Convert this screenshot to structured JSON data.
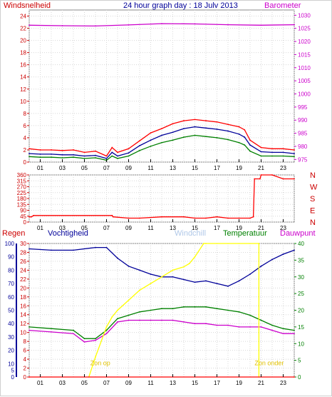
{
  "header": {
    "left_label": "Windsnelheid",
    "title": "24 hour graph day : 18 Julv 2013",
    "right_label": "Barometer"
  },
  "colors": {
    "red": "#ff0000",
    "blue": "#000099",
    "green": "#008000",
    "magenta": "#cc00cc",
    "yellow": "#ffff00",
    "windchill": "#b0c8e8",
    "dark_red": "#990000"
  },
  "chart_data": [
    {
      "type": "line",
      "title": "24 hour graph day : 18 Julv 2013",
      "x_ticks": [
        "01",
        "03",
        "05",
        "07",
        "09",
        "11",
        "13",
        "15",
        "17",
        "19",
        "21",
        "23"
      ],
      "xlim": [
        0,
        24
      ],
      "left_axis": {
        "label": "Windsnelheid",
        "ticks": [
          0,
          2,
          4,
          6,
          8,
          10,
          12,
          14,
          16,
          18,
          20,
          22,
          24
        ],
        "ylim": [
          0,
          25
        ]
      },
      "right_axis": {
        "label": "Barometer",
        "ticks": [
          975,
          980,
          985,
          990,
          995,
          1000,
          1005,
          1010,
          1015,
          1020,
          1025,
          1030
        ],
        "ylim": [
          974,
          1032
        ]
      },
      "series": [
        {
          "name": "Barometer",
          "axis": "right",
          "color": "#cc00cc",
          "x": [
            0,
            3,
            6,
            9,
            12,
            15,
            18,
            21,
            24
          ],
          "y": [
            1026.2,
            1026.0,
            1025.9,
            1026.3,
            1026.8,
            1026.7,
            1026.4,
            1026.2,
            1026.4
          ]
        },
        {
          "color": "#ff0000",
          "x": [
            0,
            1,
            2,
            3,
            4,
            5,
            6,
            7,
            7.5,
            8,
            9,
            10,
            11,
            12,
            13,
            14,
            15,
            16,
            17,
            18,
            19,
            19.5,
            20,
            21,
            22,
            23,
            24
          ],
          "y": [
            2.2,
            2.0,
            2.0,
            1.9,
            2.0,
            1.6,
            1.8,
            1.0,
            2.4,
            1.6,
            2.2,
            3.5,
            4.8,
            5.5,
            6.3,
            6.8,
            7.0,
            6.8,
            6.6,
            6.2,
            5.8,
            5.3,
            3.6,
            2.4,
            2.2,
            2.2,
            2.0
          ]
        },
        {
          "color": "#000099",
          "x": [
            0,
            1,
            2,
            3,
            4,
            5,
            6,
            7,
            7.5,
            8,
            9,
            10,
            11,
            12,
            13,
            14,
            15,
            16,
            17,
            18,
            19,
            19.5,
            20,
            21,
            22,
            23,
            24
          ],
          "y": [
            1.4,
            1.3,
            1.3,
            1.2,
            1.2,
            1.0,
            1.1,
            0.6,
            1.6,
            1.0,
            1.5,
            2.7,
            3.6,
            4.4,
            4.9,
            5.5,
            5.8,
            5.6,
            5.4,
            5.1,
            4.6,
            4.1,
            2.8,
            1.7,
            1.6,
            1.6,
            1.4
          ]
        },
        {
          "color": "#008000",
          "x": [
            0,
            1,
            2,
            3,
            4,
            5,
            6,
            7,
            7.5,
            8,
            9,
            10,
            11,
            12,
            13,
            14,
            15,
            16,
            17,
            18,
            19,
            19.5,
            20,
            21,
            22,
            23,
            24
          ],
          "y": [
            0.9,
            0.8,
            0.8,
            0.7,
            0.8,
            0.6,
            0.7,
            0.3,
            1.0,
            0.6,
            1.0,
            1.9,
            2.6,
            3.2,
            3.6,
            4.1,
            4.4,
            4.2,
            4.0,
            3.7,
            3.2,
            2.8,
            1.8,
            1.0,
            1.0,
            1.0,
            0.9
          ]
        }
      ]
    },
    {
      "type": "line",
      "x_ticks": [
        "01",
        "03",
        "05",
        "07",
        "09",
        "11",
        "13",
        "15",
        "17",
        "19",
        "21",
        "23"
      ],
      "xlim": [
        0,
        24
      ],
      "left_axis": {
        "ticks": [
          0,
          45,
          90,
          135,
          180,
          225,
          270,
          315,
          360
        ],
        "ylim": [
          0,
          360
        ]
      },
      "right_axis": {
        "ticks": [
          "N",
          "W",
          "S",
          "E",
          "N"
        ]
      },
      "series": [
        {
          "color": "#ff0000",
          "x": [
            0,
            0.2,
            0.4,
            7.5,
            7.6,
            9,
            10,
            12,
            14,
            15,
            16,
            17,
            18,
            19,
            20,
            20.3,
            20.4,
            20.9,
            21,
            22,
            23,
            24
          ],
          "y": [
            40,
            40,
            50,
            50,
            40,
            30,
            30,
            40,
            40,
            30,
            30,
            40,
            30,
            30,
            30,
            40,
            330,
            330,
            360,
            360,
            330,
            330
          ]
        }
      ]
    },
    {
      "type": "line",
      "x_ticks": [
        "01",
        "03",
        "05",
        "07",
        "09",
        "11",
        "13",
        "15",
        "17",
        "19",
        "21",
        "23"
      ],
      "xlim": [
        0,
        24
      ],
      "header_labels": [
        "Regen",
        "Vochtigheid",
        "Windchill",
        "Temperatuur",
        "Dauwpunt"
      ],
      "axis_regen": {
        "ticks": [
          0,
          2,
          4,
          6,
          8,
          10,
          12,
          14,
          16,
          18,
          20,
          22,
          24,
          26,
          28,
          30
        ],
        "ylim": [
          0,
          30
        ]
      },
      "axis_vochtigheid": {
        "ticks": [
          0,
          5,
          10,
          20,
          30,
          40,
          50,
          60,
          70,
          80,
          90,
          100
        ],
        "ylim": [
          0,
          100
        ]
      },
      "axis_temp": {
        "ticks": [
          0,
          5,
          10,
          15,
          20,
          25,
          30,
          35,
          40
        ],
        "ylim": [
          0,
          40
        ]
      },
      "annotations": [
        "Zon op",
        "Zon onder"
      ],
      "series": [
        {
          "name": "Vochtigheid",
          "axis": "vochtigheid",
          "color": "#000099",
          "x": [
            0,
            2,
            4,
            6,
            7,
            8,
            9,
            10,
            11,
            12,
            13,
            14,
            15,
            16,
            17,
            18,
            19,
            20,
            21,
            22,
            23,
            24
          ],
          "y": [
            96,
            95,
            95,
            97,
            97,
            89,
            83,
            80,
            77,
            75,
            75,
            73,
            71,
            72,
            70,
            68,
            72,
            77,
            83,
            88,
            92,
            95
          ]
        },
        {
          "name": "Temperatuur",
          "axis": "temp",
          "color": "#008000",
          "x": [
            0,
            2,
            4,
            5,
            6,
            7,
            8,
            9,
            10,
            11,
            12,
            13,
            14,
            15,
            16,
            17,
            18,
            19,
            20,
            21,
            22,
            23,
            24
          ],
          "y": [
            15,
            14.5,
            14,
            11.5,
            11.5,
            14,
            17.5,
            18.5,
            19.5,
            20,
            20.5,
            20.5,
            21,
            21,
            21,
            20.5,
            20,
            19.5,
            18.5,
            17,
            15.5,
            14.5,
            14
          ]
        },
        {
          "name": "Dauwpunt",
          "axis": "temp",
          "color": "#cc00cc",
          "x": [
            0,
            2,
            4,
            5,
            6,
            7,
            8,
            9,
            10,
            11,
            12,
            13,
            14,
            15,
            16,
            17,
            18,
            19,
            20,
            21,
            22,
            23,
            24
          ],
          "y": [
            14,
            13.5,
            13,
            10.5,
            11,
            13,
            16.5,
            17,
            17,
            17,
            17,
            17,
            16.5,
            16,
            16,
            15.5,
            15.5,
            15,
            15,
            15,
            14,
            13,
            13
          ]
        },
        {
          "axis": "temp",
          "color": "#ffff00",
          "x": [
            5.4,
            6,
            7,
            7.5,
            8,
            9,
            10,
            11,
            12,
            13,
            14,
            14.5,
            15,
            15.8,
            16,
            20.8,
            20.8
          ],
          "y": [
            0,
            6,
            15,
            18,
            20,
            23,
            26,
            28,
            30,
            32,
            33,
            34,
            36,
            40,
            40,
            40,
            0
          ]
        },
        {
          "name": "Regen",
          "axis": "regen",
          "color": "#ff0000",
          "x": [
            0,
            24
          ],
          "y": [
            0,
            0
          ]
        }
      ]
    }
  ]
}
